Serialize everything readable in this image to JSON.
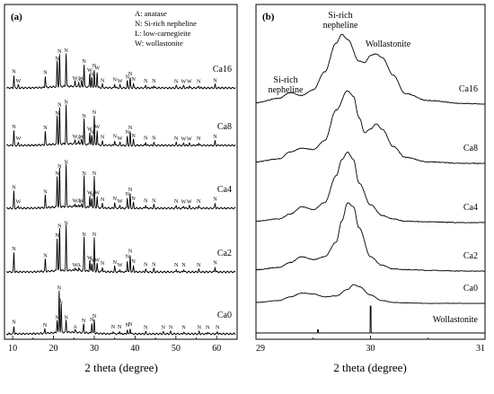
{
  "chart_data": [
    {
      "panel_label": "(a)",
      "type": "line",
      "xlabel": "2 theta (degree)",
      "xlim": [
        8,
        65
      ],
      "xticks": [
        10,
        20,
        30,
        40,
        50,
        60
      ],
      "legend_lines": [
        "A: anatase",
        "N: Si-rich nepheline",
        "L: low-carnegieite",
        "W: wollastonite"
      ],
      "series": [
        {
          "name": "Ca16",
          "peaks": [
            {
              "x": 10.3,
              "h": 0.22,
              "label": "N"
            },
            {
              "x": 11.4,
              "h": 0.05,
              "label": "W"
            },
            {
              "x": 18.0,
              "h": 0.2,
              "label": "N"
            },
            {
              "x": 20.9,
              "h": 0.45,
              "label": "N"
            },
            {
              "x": 21.5,
              "h": 0.58,
              "label": "N"
            },
            {
              "x": 23.1,
              "h": 0.6,
              "label": "N"
            },
            {
              "x": 25.3,
              "h": 0.1,
              "label": "W"
            },
            {
              "x": 26.2,
              "h": 0.07,
              "label": "A"
            },
            {
              "x": 26.9,
              "h": 0.1,
              "label": "W"
            },
            {
              "x": 27.5,
              "h": 0.4,
              "label": "N"
            },
            {
              "x": 28.9,
              "h": 0.24,
              "label": "W"
            },
            {
              "x": 29.4,
              "h": 0.17,
              "label": "N"
            },
            {
              "x": 30.0,
              "h": 0.32,
              "label": "N"
            },
            {
              "x": 30.7,
              "h": 0.28,
              "label": "W"
            },
            {
              "x": 32.0,
              "h": 0.06,
              "label": "N"
            },
            {
              "x": 35.0,
              "h": 0.07,
              "label": "N"
            },
            {
              "x": 36.3,
              "h": 0.05,
              "label": "W"
            },
            {
              "x": 38.1,
              "h": 0.12,
              "label": "N"
            },
            {
              "x": 38.8,
              "h": 0.18,
              "label": "N"
            },
            {
              "x": 39.6,
              "h": 0.08,
              "label": "N"
            },
            {
              "x": 42.6,
              "h": 0.05,
              "label": "N"
            },
            {
              "x": 44.6,
              "h": 0.05,
              "label": "N"
            },
            {
              "x": 50.1,
              "h": 0.04,
              "label": "N"
            },
            {
              "x": 51.9,
              "h": 0.04,
              "label": "W"
            },
            {
              "x": 53.3,
              "h": 0.04,
              "label": "W"
            },
            {
              "x": 55.6,
              "h": 0.04,
              "label": "N"
            },
            {
              "x": 59.6,
              "h": 0.06,
              "label": "N"
            }
          ]
        },
        {
          "name": "Ca8",
          "peaks": [
            {
              "x": 10.3,
              "h": 0.26,
              "label": "N"
            },
            {
              "x": 11.4,
              "h": 0.05,
              "label": "W"
            },
            {
              "x": 18.0,
              "h": 0.24,
              "label": "N"
            },
            {
              "x": 20.9,
              "h": 0.5,
              "label": "N"
            },
            {
              "x": 21.5,
              "h": 0.65,
              "label": "N"
            },
            {
              "x": 23.1,
              "h": 0.7,
              "label": "N"
            },
            {
              "x": 25.3,
              "h": 0.08,
              "label": "W"
            },
            {
              "x": 26.2,
              "h": 0.06,
              "label": "A"
            },
            {
              "x": 26.9,
              "h": 0.08,
              "label": "W"
            },
            {
              "x": 27.5,
              "h": 0.45,
              "label": "N"
            },
            {
              "x": 28.9,
              "h": 0.22,
              "label": "W"
            },
            {
              "x": 29.4,
              "h": 0.16,
              "label": "N"
            },
            {
              "x": 30.0,
              "h": 0.52,
              "label": "N"
            },
            {
              "x": 30.7,
              "h": 0.26,
              "label": "W"
            },
            {
              "x": 32.0,
              "h": 0.07,
              "label": "N"
            },
            {
              "x": 35.0,
              "h": 0.09,
              "label": "N"
            },
            {
              "x": 36.3,
              "h": 0.05,
              "label": "W"
            },
            {
              "x": 38.1,
              "h": 0.16,
              "label": "N"
            },
            {
              "x": 38.8,
              "h": 0.24,
              "label": "N"
            },
            {
              "x": 39.6,
              "h": 0.1,
              "label": "N"
            },
            {
              "x": 42.6,
              "h": 0.06,
              "label": "N"
            },
            {
              "x": 44.6,
              "h": 0.06,
              "label": "N"
            },
            {
              "x": 50.1,
              "h": 0.05,
              "label": "N"
            },
            {
              "x": 51.9,
              "h": 0.04,
              "label": "W"
            },
            {
              "x": 53.3,
              "h": 0.04,
              "label": "W"
            },
            {
              "x": 55.6,
              "h": 0.05,
              "label": "N"
            },
            {
              "x": 59.6,
              "h": 0.08,
              "label": "N"
            }
          ]
        },
        {
          "name": "Ca4",
          "peaks": [
            {
              "x": 10.3,
              "h": 0.3,
              "label": "N"
            },
            {
              "x": 11.4,
              "h": 0.04,
              "label": "W"
            },
            {
              "x": 18.0,
              "h": 0.22,
              "label": "N"
            },
            {
              "x": 20.9,
              "h": 0.55,
              "label": "N"
            },
            {
              "x": 21.5,
              "h": 0.68,
              "label": "N"
            },
            {
              "x": 23.1,
              "h": 0.75,
              "label": "N"
            },
            {
              "x": 25.3,
              "h": 0.06,
              "label": "W"
            },
            {
              "x": 26.2,
              "h": 0.05,
              "label": "A"
            },
            {
              "x": 26.9,
              "h": 0.06,
              "label": "W"
            },
            {
              "x": 27.5,
              "h": 0.55,
              "label": "N"
            },
            {
              "x": 28.9,
              "h": 0.2,
              "label": "W"
            },
            {
              "x": 29.4,
              "h": 0.16,
              "label": "N"
            },
            {
              "x": 30.0,
              "h": 0.55,
              "label": "N"
            },
            {
              "x": 30.7,
              "h": 0.2,
              "label": "W"
            },
            {
              "x": 32.0,
              "h": 0.08,
              "label": "N"
            },
            {
              "x": 35.0,
              "h": 0.1,
              "label": "N"
            },
            {
              "x": 36.3,
              "h": 0.05,
              "label": "W"
            },
            {
              "x": 38.1,
              "h": 0.18,
              "label": "N"
            },
            {
              "x": 38.8,
              "h": 0.26,
              "label": "N"
            },
            {
              "x": 39.6,
              "h": 0.1,
              "label": "N"
            },
            {
              "x": 42.6,
              "h": 0.06,
              "label": "N"
            },
            {
              "x": 44.6,
              "h": 0.06,
              "label": "N"
            },
            {
              "x": 50.1,
              "h": 0.05,
              "label": "N"
            },
            {
              "x": 51.9,
              "h": 0.04,
              "label": "W"
            },
            {
              "x": 53.3,
              "h": 0.04,
              "label": "W"
            },
            {
              "x": 55.6,
              "h": 0.05,
              "label": "N"
            },
            {
              "x": 59.6,
              "h": 0.09,
              "label": "N"
            }
          ]
        },
        {
          "name": "Ca2",
          "peaks": [
            {
              "x": 10.3,
              "h": 0.34,
              "label": "N"
            },
            {
              "x": 18.0,
              "h": 0.22,
              "label": "N"
            },
            {
              "x": 20.9,
              "h": 0.58,
              "label": "N"
            },
            {
              "x": 21.5,
              "h": 0.75,
              "label": "N"
            },
            {
              "x": 23.1,
              "h": 0.8,
              "label": "N"
            },
            {
              "x": 25.3,
              "h": 0.05,
              "label": "W"
            },
            {
              "x": 26.2,
              "h": 0.05,
              "label": "A"
            },
            {
              "x": 27.5,
              "h": 0.6,
              "label": "N"
            },
            {
              "x": 28.9,
              "h": 0.18,
              "label": "W"
            },
            {
              "x": 29.4,
              "h": 0.14,
              "label": "N"
            },
            {
              "x": 30.0,
              "h": 0.6,
              "label": "N"
            },
            {
              "x": 30.7,
              "h": 0.14,
              "label": "W"
            },
            {
              "x": 32.0,
              "h": 0.08,
              "label": "N"
            },
            {
              "x": 35.0,
              "h": 0.1,
              "label": "N"
            },
            {
              "x": 36.3,
              "h": 0.05,
              "label": "W"
            },
            {
              "x": 38.1,
              "h": 0.2,
              "label": "N"
            },
            {
              "x": 38.8,
              "h": 0.3,
              "label": "N"
            },
            {
              "x": 39.6,
              "h": 0.11,
              "label": "N"
            },
            {
              "x": 42.6,
              "h": 0.06,
              "label": "N"
            },
            {
              "x": 44.6,
              "h": 0.06,
              "label": "N"
            },
            {
              "x": 50.1,
              "h": 0.05,
              "label": "N"
            },
            {
              "x": 51.9,
              "h": 0.05,
              "label": "N"
            },
            {
              "x": 55.6,
              "h": 0.05,
              "label": "N"
            },
            {
              "x": 59.6,
              "h": 0.09,
              "label": "N"
            }
          ]
        },
        {
          "name": "Ca0",
          "peaks": [
            {
              "x": 10.3,
              "h": 0.14,
              "label": "N"
            },
            {
              "x": 17.9,
              "h": 0.08,
              "label": "N"
            },
            {
              "x": 20.9,
              "h": 0.22,
              "label": "N"
            },
            {
              "x": 21.4,
              "h": 0.75,
              "label": "N"
            },
            {
              "x": 21.9,
              "h": 0.52,
              "label": "L"
            },
            {
              "x": 23.1,
              "h": 0.22,
              "label": "N"
            },
            {
              "x": 25.3,
              "h": 0.05,
              "label": "A"
            },
            {
              "x": 27.4,
              "h": 0.16,
              "label": "N"
            },
            {
              "x": 29.4,
              "h": 0.18,
              "label": "N"
            },
            {
              "x": 30.0,
              "h": 0.24,
              "label": "N"
            },
            {
              "x": 34.6,
              "h": 0.05,
              "label": "N"
            },
            {
              "x": 36.2,
              "h": 0.05,
              "label": "N"
            },
            {
              "x": 38.1,
              "h": 0.08,
              "label": "N"
            },
            {
              "x": 38.8,
              "h": 0.1,
              "label": "N"
            },
            {
              "x": 42.6,
              "h": 0.04,
              "label": "N"
            },
            {
              "x": 46.9,
              "h": 0.04,
              "label": "N"
            },
            {
              "x": 48.7,
              "h": 0.04,
              "label": "N"
            },
            {
              "x": 51.9,
              "h": 0.04,
              "label": "N"
            },
            {
              "x": 55.7,
              "h": 0.04,
              "label": "N"
            },
            {
              "x": 57.8,
              "h": 0.04,
              "label": "N"
            },
            {
              "x": 60.2,
              "h": 0.04,
              "label": "N"
            }
          ]
        }
      ]
    },
    {
      "panel_label": "(b)",
      "type": "line",
      "xlabel": "2 theta (degree)",
      "xlim": [
        29,
        31
      ],
      "xticks": [
        29,
        30,
        31
      ],
      "annotations": [
        "Si-rich\nnepheline",
        "Si-rich\nnepheline",
        "Wollastonite"
      ],
      "series": [
        {
          "name": "Ca16",
          "x": [
            29.0,
            29.2,
            29.3,
            29.4,
            29.5,
            29.6,
            29.7,
            29.75,
            29.8,
            29.9,
            29.95,
            30.0,
            30.05,
            30.1,
            30.2,
            30.3,
            30.5,
            30.8,
            31.0
          ],
          "y": [
            0.02,
            0.08,
            0.16,
            0.12,
            0.2,
            0.45,
            0.85,
            0.97,
            0.9,
            0.6,
            0.58,
            0.68,
            0.7,
            0.65,
            0.4,
            0.15,
            0.05,
            0.01,
            0.0
          ]
        },
        {
          "name": "Ca8",
          "x": [
            29.0,
            29.2,
            29.3,
            29.4,
            29.5,
            29.6,
            29.7,
            29.8,
            29.85,
            29.9,
            29.95,
            30.0,
            30.05,
            30.1,
            30.2,
            30.3,
            30.5,
            30.8,
            31.0
          ],
          "y": [
            0.02,
            0.06,
            0.15,
            0.2,
            0.18,
            0.3,
            0.7,
            0.95,
            0.88,
            0.6,
            0.4,
            0.45,
            0.52,
            0.45,
            0.22,
            0.08,
            0.02,
            0.0,
            0.0
          ]
        },
        {
          "name": "Ca4",
          "x": [
            29.0,
            29.2,
            29.3,
            29.4,
            29.5,
            29.6,
            29.7,
            29.75,
            29.8,
            29.85,
            29.9,
            30.0,
            30.1,
            30.2,
            30.3,
            30.5,
            30.8,
            31.0
          ],
          "y": [
            0.02,
            0.05,
            0.12,
            0.22,
            0.18,
            0.28,
            0.65,
            0.88,
            0.98,
            0.88,
            0.55,
            0.25,
            0.1,
            0.05,
            0.02,
            0.01,
            0.0,
            0.0
          ]
        },
        {
          "name": "Ca2",
          "x": [
            29.0,
            29.2,
            29.3,
            29.4,
            29.5,
            29.6,
            29.7,
            29.75,
            29.8,
            29.85,
            29.9,
            30.0,
            30.1,
            30.2,
            30.3,
            30.5,
            30.8,
            31.0
          ],
          "y": [
            0.02,
            0.05,
            0.12,
            0.2,
            0.16,
            0.2,
            0.4,
            0.7,
            0.95,
            0.9,
            0.6,
            0.2,
            0.08,
            0.03,
            0.02,
            0.01,
            0.0,
            0.0
          ]
        },
        {
          "name": "Ca0",
          "x": [
            29.0,
            29.2,
            29.3,
            29.4,
            29.5,
            29.6,
            29.7,
            29.8,
            29.85,
            29.9,
            30.0,
            30.1,
            30.2,
            30.3,
            30.5,
            30.8,
            31.0
          ],
          "y": [
            0.02,
            0.06,
            0.14,
            0.22,
            0.2,
            0.14,
            0.16,
            0.3,
            0.4,
            0.36,
            0.18,
            0.06,
            0.02,
            0.01,
            0.0,
            0.0,
            0.0
          ]
        },
        {
          "name": "Wollastonite",
          "x": [
            29.0,
            29.53,
            29.54,
            29.55,
            29.99,
            30.0,
            30.01,
            31.0
          ],
          "y": [
            0.0,
            0.0,
            0.12,
            0.0,
            0.0,
            1.0,
            0.0,
            0.0
          ]
        }
      ]
    }
  ]
}
